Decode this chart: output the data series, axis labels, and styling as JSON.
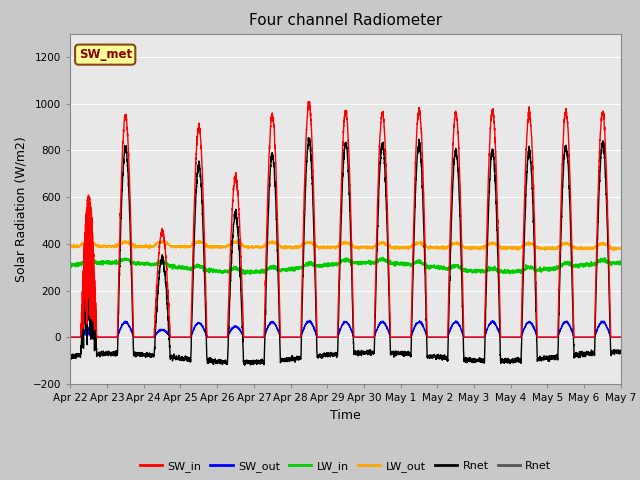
{
  "title": "Four channel Radiometer",
  "xlabel": "Time",
  "ylabel": "Solar Radiation (W/m2)",
  "ylim": [
    -200,
    1300
  ],
  "yticks": [
    -200,
    0,
    200,
    400,
    600,
    800,
    1000,
    1200
  ],
  "outer_bg": "#c8c8c8",
  "plot_bg_color": "#e8e8e8",
  "annotation_text": "SW_met",
  "annotation_bg": "#ffff99",
  "annotation_edge": "#8b4513",
  "legend_entries": [
    "SW_in",
    "SW_out",
    "LW_in",
    "LW_out",
    "Rnet",
    "Rnet"
  ],
  "colors": {
    "SW_in": "#ff0000",
    "SW_out": "#0000ff",
    "LW_in": "#00cc00",
    "LW_out": "#ffa500",
    "Rnet1": "#000000",
    "Rnet2": "#555555"
  },
  "num_days": 15,
  "date_labels": [
    "Apr 22",
    "Apr 23",
    "Apr 24",
    "Apr 25",
    "Apr 26",
    "Apr 27",
    "Apr 28",
    "Apr 29",
    "Apr 30",
    "May 1",
    "May 2",
    "May 3",
    "May 4",
    "May 5",
    "May 6",
    "May 7"
  ],
  "peak_heights": [
    600,
    950,
    450,
    900,
    680,
    950,
    1000,
    970,
    960,
    970,
    960,
    970,
    960,
    970,
    960
  ],
  "lw_out_base": 390,
  "lw_in_base": 300,
  "rnet_night": -120
}
